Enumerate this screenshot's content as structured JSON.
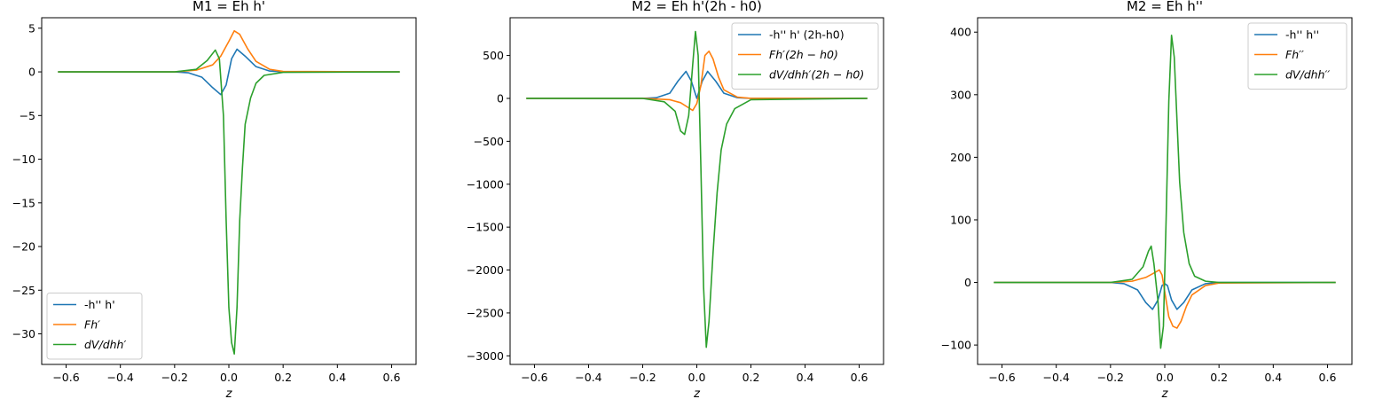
{
  "chart_data": [
    {
      "type": "line",
      "title": "M1 = Eh h'",
      "xlabel": "z",
      "ylabel": "",
      "xlim": [
        -0.69,
        0.69
      ],
      "ylim": [
        -33.5,
        6.2
      ],
      "xticks": [
        -0.6,
        -0.4,
        -0.2,
        0.0,
        0.2,
        0.4,
        0.6
      ],
      "xtick_labels": [
        "−0.6",
        "−0.4",
        "−0.2",
        "0.0",
        "0.2",
        "0.4",
        "0.6"
      ],
      "yticks": [
        5,
        0,
        -5,
        -10,
        -15,
        -20,
        -25,
        -30
      ],
      "ytick_labels": [
        "5",
        "0",
        "−5",
        "−10",
        "−15",
        "−20",
        "−25",
        "−30"
      ],
      "grid": false,
      "legend_position": "lower-left",
      "series": [
        {
          "name": "-h'' h'",
          "color": "#1f77b4",
          "points": [
            [
              -0.63,
              0
            ],
            [
              -0.2,
              0
            ],
            [
              -0.15,
              -0.1
            ],
            [
              -0.1,
              -0.6
            ],
            [
              -0.06,
              -1.8
            ],
            [
              -0.03,
              -2.6
            ],
            [
              -0.01,
              -1.5
            ],
            [
              0.0,
              0
            ],
            [
              0.01,
              1.5
            ],
            [
              0.03,
              2.6
            ],
            [
              0.06,
              1.8
            ],
            [
              0.1,
              0.6
            ],
            [
              0.15,
              0.1
            ],
            [
              0.2,
              0
            ],
            [
              0.63,
              0
            ]
          ]
        },
        {
          "name": "Fh′",
          "color": "#ff7f0e",
          "points": [
            [
              -0.63,
              0
            ],
            [
              -0.2,
              0
            ],
            [
              -0.12,
              0.2
            ],
            [
              -0.06,
              0.8
            ],
            [
              -0.03,
              1.8
            ],
            [
              0.0,
              3.5
            ],
            [
              0.02,
              4.7
            ],
            [
              0.04,
              4.3
            ],
            [
              0.07,
              2.6
            ],
            [
              0.1,
              1.2
            ],
            [
              0.15,
              0.3
            ],
            [
              0.2,
              0.05
            ],
            [
              0.63,
              0
            ]
          ]
        },
        {
          "name": "dV/dhh′",
          "color": "#2ca02c",
          "points": [
            [
              -0.63,
              0
            ],
            [
              -0.2,
              0
            ],
            [
              -0.12,
              0.3
            ],
            [
              -0.08,
              1.3
            ],
            [
              -0.05,
              2.5
            ],
            [
              -0.035,
              1.5
            ],
            [
              -0.02,
              -5
            ],
            [
              -0.01,
              -17
            ],
            [
              0.0,
              -27
            ],
            [
              0.01,
              -31
            ],
            [
              0.02,
              -32.3
            ],
            [
              0.03,
              -27
            ],
            [
              0.04,
              -17
            ],
            [
              0.05,
              -11
            ],
            [
              0.06,
              -6
            ],
            [
              0.08,
              -3
            ],
            [
              0.1,
              -1.3
            ],
            [
              0.13,
              -0.4
            ],
            [
              0.2,
              -0.05
            ],
            [
              0.63,
              0
            ]
          ]
        }
      ]
    },
    {
      "type": "line",
      "title": "M2 = Eh h'(2h - h0)",
      "xlabel": "z",
      "ylabel": "",
      "xlim": [
        -0.69,
        0.69
      ],
      "ylim": [
        -3100,
        940
      ],
      "xticks": [
        -0.6,
        -0.4,
        -0.2,
        0.0,
        0.2,
        0.4,
        0.6
      ],
      "xtick_labels": [
        "−0.6",
        "−0.4",
        "−0.2",
        "0.0",
        "0.2",
        "0.4",
        "0.6"
      ],
      "yticks": [
        500,
        0,
        -500,
        -1000,
        -1500,
        -2000,
        -2500,
        -3000
      ],
      "ytick_labels": [
        "500",
        "0",
        "−500",
        "−1000",
        "−1500",
        "−2000",
        "−2500",
        "−3000"
      ],
      "grid": false,
      "legend_position": "upper-right",
      "series": [
        {
          "name": "-h'' h' (2h-h0)",
          "color": "#1f77b4",
          "points": [
            [
              -0.63,
              0
            ],
            [
              -0.2,
              0
            ],
            [
              -0.15,
              8
            ],
            [
              -0.1,
              60
            ],
            [
              -0.07,
              200
            ],
            [
              -0.04,
              315
            ],
            [
              -0.02,
              200
            ],
            [
              0.0,
              0
            ],
            [
              0.02,
              200
            ],
            [
              0.04,
              315
            ],
            [
              0.07,
              200
            ],
            [
              0.1,
              60
            ],
            [
              0.15,
              8
            ],
            [
              0.2,
              0
            ],
            [
              0.63,
              0
            ]
          ]
        },
        {
          "name": "Fh′(2h − h0)",
          "color": "#ff7f0e",
          "points": [
            [
              -0.63,
              0
            ],
            [
              -0.2,
              0
            ],
            [
              -0.1,
              -15
            ],
            [
              -0.06,
              -50
            ],
            [
              -0.03,
              -110
            ],
            [
              -0.015,
              -140
            ],
            [
              0.0,
              -60
            ],
            [
              0.015,
              150
            ],
            [
              0.03,
              500
            ],
            [
              0.045,
              550
            ],
            [
              0.06,
              460
            ],
            [
              0.08,
              250
            ],
            [
              0.1,
              100
            ],
            [
              0.15,
              15
            ],
            [
              0.2,
              0
            ],
            [
              0.63,
              0
            ]
          ]
        },
        {
          "name": "dV/dhh′(2h − h0)",
          "color": "#2ca02c",
          "points": [
            [
              -0.63,
              0
            ],
            [
              -0.2,
              0
            ],
            [
              -0.12,
              -40
            ],
            [
              -0.08,
              -150
            ],
            [
              -0.06,
              -380
            ],
            [
              -0.045,
              -420
            ],
            [
              -0.03,
              -200
            ],
            [
              -0.015,
              400
            ],
            [
              -0.005,
              780
            ],
            [
              0.005,
              500
            ],
            [
              0.015,
              -800
            ],
            [
              0.025,
              -2200
            ],
            [
              0.035,
              -2900
            ],
            [
              0.045,
              -2600
            ],
            [
              0.06,
              -1800
            ],
            [
              0.075,
              -1100
            ],
            [
              0.09,
              -600
            ],
            [
              0.11,
              -300
            ],
            [
              0.14,
              -120
            ],
            [
              0.2,
              -15
            ],
            [
              0.63,
              0
            ]
          ]
        }
      ]
    },
    {
      "type": "line",
      "title": "M2 = Eh h''",
      "xlabel": "z",
      "ylabel": "",
      "xlim": [
        -0.69,
        0.69
      ],
      "ylim": [
        -131,
        423
      ],
      "xticks": [
        -0.6,
        -0.4,
        -0.2,
        0.0,
        0.2,
        0.4,
        0.6
      ],
      "xtick_labels": [
        "−0.6",
        "−0.4",
        "−0.2",
        "0.0",
        "0.2",
        "0.4",
        "0.6"
      ],
      "yticks": [
        400,
        300,
        200,
        100,
        0,
        -100
      ],
      "ytick_labels": [
        "400",
        "300",
        "200",
        "100",
        "0",
        "−100"
      ],
      "grid": false,
      "legend_position": "upper-right",
      "series": [
        {
          "name": "-h'' h''",
          "color": "#1f77b4",
          "points": [
            [
              -0.63,
              0
            ],
            [
              -0.2,
              0
            ],
            [
              -0.15,
              -2
            ],
            [
              -0.1,
              -12
            ],
            [
              -0.07,
              -32
            ],
            [
              -0.045,
              -43
            ],
            [
              -0.025,
              -28
            ],
            [
              -0.01,
              -5
            ],
            [
              0.0,
              -2
            ],
            [
              0.01,
              -5
            ],
            [
              0.025,
              -28
            ],
            [
              0.045,
              -43
            ],
            [
              0.07,
              -32
            ],
            [
              0.1,
              -12
            ],
            [
              0.15,
              -2
            ],
            [
              0.2,
              0
            ],
            [
              0.63,
              0
            ]
          ]
        },
        {
          "name": "Fh′′",
          "color": "#ff7f0e",
          "points": [
            [
              -0.63,
              0
            ],
            [
              -0.2,
              0
            ],
            [
              -0.12,
              2
            ],
            [
              -0.07,
              8
            ],
            [
              -0.04,
              15
            ],
            [
              -0.02,
              20
            ],
            [
              -0.01,
              12
            ],
            [
              0.0,
              -15
            ],
            [
              0.015,
              -55
            ],
            [
              0.03,
              -70
            ],
            [
              0.045,
              -73
            ],
            [
              0.06,
              -62
            ],
            [
              0.08,
              -38
            ],
            [
              0.1,
              -20
            ],
            [
              0.15,
              -5
            ],
            [
              0.2,
              -1
            ],
            [
              0.63,
              0
            ]
          ]
        },
        {
          "name": "dV/dhh′′",
          "color": "#2ca02c",
          "points": [
            [
              -0.63,
              0
            ],
            [
              -0.2,
              0
            ],
            [
              -0.12,
              5
            ],
            [
              -0.08,
              25
            ],
            [
              -0.06,
              50
            ],
            [
              -0.05,
              58
            ],
            [
              -0.04,
              30
            ],
            [
              -0.025,
              -30
            ],
            [
              -0.015,
              -105
            ],
            [
              -0.005,
              -70
            ],
            [
              0.005,
              100
            ],
            [
              0.015,
              290
            ],
            [
              0.025,
              395
            ],
            [
              0.035,
              360
            ],
            [
              0.045,
              260
            ],
            [
              0.055,
              160
            ],
            [
              0.07,
              80
            ],
            [
              0.09,
              30
            ],
            [
              0.11,
              10
            ],
            [
              0.15,
              2
            ],
            [
              0.2,
              0
            ],
            [
              0.63,
              0
            ]
          ]
        }
      ]
    }
  ]
}
